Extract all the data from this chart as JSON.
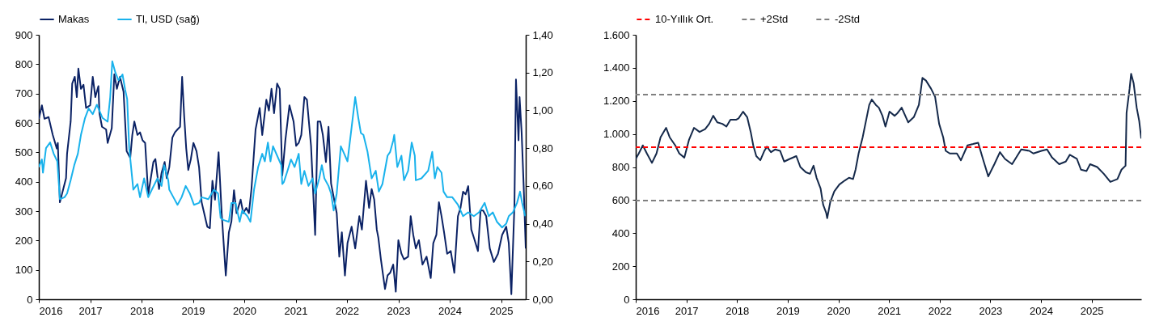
{
  "chart_data": [
    {
      "type": "line",
      "legend": "top",
      "xlim": [
        2016,
        2025.48
      ],
      "xticks": [
        2016,
        2017,
        2018,
        2019,
        2020,
        2021,
        2022,
        2023,
        2024,
        2025
      ],
      "ylim": [
        0,
        900
      ],
      "yticks": [
        0,
        100,
        200,
        300,
        400,
        500,
        600,
        700,
        800,
        900
      ],
      "y2lim": [
        0,
        1.4
      ],
      "y2ticks": [
        {
          "value": 0,
          "label": "0,00"
        },
        {
          "value": 0.2,
          "label": "0,20"
        },
        {
          "value": 0.4,
          "label": "0,40"
        },
        {
          "value": 0.6,
          "label": "0,60"
        },
        {
          "value": 0.8,
          "label": "0,80"
        },
        {
          "value": 1,
          "label": "1,00"
        },
        {
          "value": 1.2,
          "label": "1,20"
        },
        {
          "value": 1.4,
          "label": "1,40"
        }
      ],
      "series": [
        {
          "name": "Makas",
          "color": "#0b2265",
          "x": [
            2016.0,
            2016.06,
            2016.11,
            2016.19,
            2016.27,
            2016.35,
            2016.37,
            2016.41,
            2016.53,
            2016.55,
            2016.62,
            2016.65,
            2016.7,
            2016.74,
            2016.77,
            2016.82,
            2016.87,
            2016.92,
            2017.0,
            2017.05,
            2017.1,
            2017.16,
            2017.18,
            2017.23,
            2017.31,
            2017.34,
            2017.42,
            2017.47,
            2017.52,
            2017.58,
            2017.65,
            2017.71,
            2017.78,
            2017.82,
            2017.86,
            2017.92,
            2017.97,
            2018.02,
            2018.07,
            2018.13,
            2018.18,
            2018.23,
            2018.27,
            2018.34,
            2018.39,
            2018.45,
            2018.49,
            2018.54,
            2018.6,
            2018.65,
            2018.7,
            2018.75,
            2018.79,
            2018.83,
            2018.87,
            2018.91,
            2018.96,
            2019.01,
            2019.07,
            2019.12,
            2019.17,
            2019.28,
            2019.33,
            2019.38,
            2019.43,
            2019.5,
            2019.56,
            2019.64,
            2019.7,
            2019.75,
            2019.8,
            2019.85,
            2019.93,
            2019.98,
            2020.04,
            2020.09,
            2020.14,
            2020.22,
            2020.3,
            2020.35,
            2020.43,
            2020.48,
            2020.53,
            2020.58,
            2020.64,
            2020.69,
            2020.74,
            2020.8,
            2020.88,
            2020.96,
            2021.01,
            2021.06,
            2021.11,
            2021.17,
            2021.22,
            2021.3,
            2021.38,
            2021.43,
            2021.48,
            2021.53,
            2021.59,
            2021.64,
            2021.69,
            2021.74,
            2021.8,
            2021.85,
            2021.9,
            2021.96,
            2022.01,
            2022.09,
            2022.16,
            2022.24,
            2022.29,
            2022.37,
            2022.43,
            2022.48,
            2022.53,
            2022.58,
            2022.61,
            2022.66,
            2022.74,
            2022.79,
            2022.84,
            2022.9,
            2022.95,
            2023.0,
            2023.06,
            2023.11,
            2023.19,
            2023.24,
            2023.29,
            2023.34,
            2023.4,
            2023.47,
            2023.55,
            2023.63,
            2023.68,
            2023.74,
            2023.79,
            2023.84,
            2023.89,
            2023.95,
            2024.02,
            2024.09,
            2024.16,
            2024.21,
            2024.26,
            2024.31,
            2024.36,
            2024.42,
            2024.47,
            2024.55,
            2024.6,
            2024.65,
            2024.71,
            2024.78,
            2024.86,
            2024.94,
            2025.02,
            2025.1,
            2025.15,
            2025.2,
            2025.26,
            2025.29,
            2025.34,
            2025.36,
            2025.4,
            2025.44,
            2025.48
          ],
          "values": [
            614,
            660,
            614,
            620,
            560,
            513,
            532,
            330,
            412,
            495,
            605,
            734,
            757,
            688,
            785,
            716,
            730,
            651,
            660,
            757,
            688,
            725,
            633,
            587,
            578,
            532,
            582,
            766,
            716,
            757,
            706,
            504,
            481,
            559,
            605,
            559,
            568,
            541,
            532,
            357,
            412,
            467,
            477,
            375,
            430,
            467,
            412,
            449,
            550,
            568,
            578,
            587,
            757,
            624,
            513,
            440,
            477,
            532,
            504,
            449,
            330,
            247,
            242,
            403,
            339,
            500,
            293,
            81,
            228,
            265,
            371,
            293,
            339,
            293,
            311,
            293,
            375,
            578,
            651,
            559,
            679,
            642,
            716,
            633,
            734,
            716,
            421,
            541,
            660,
            605,
            522,
            532,
            559,
            688,
            679,
            522,
            219,
            605,
            605,
            559,
            467,
            587,
            394,
            348,
            293,
            145,
            228,
            81,
            191,
            247,
            173,
            283,
            237,
            403,
            311,
            375,
            339,
            237,
            210,
            136,
            35,
            81,
            90,
            118,
            26,
            201,
            155,
            136,
            145,
            283,
            219,
            173,
            201,
            118,
            145,
            72,
            191,
            219,
            330,
            283,
            228,
            155,
            164,
            90,
            283,
            311,
            366,
            357,
            385,
            237,
            210,
            164,
            302,
            302,
            283,
            173,
            127,
            155,
            219,
            247,
            191,
            17,
            320,
            748,
            541,
            688,
            568,
            385,
            173
          ]
        },
        {
          "name": "Tl, USD (sağ)",
          "color": "#19b2ec",
          "axis": "y2",
          "x": [
            2016.0,
            2016.06,
            2016.08,
            2016.14,
            2016.22,
            2016.29,
            2016.36,
            2016.41,
            2016.5,
            2016.55,
            2016.62,
            2016.69,
            2016.76,
            2016.82,
            2016.9,
            2016.97,
            2017.05,
            2017.13,
            2017.24,
            2017.34,
            2017.39,
            2017.43,
            2017.49,
            2017.55,
            2017.63,
            2017.68,
            2017.72,
            2017.76,
            2017.84,
            2017.92,
            2017.97,
            2018.05,
            2018.13,
            2018.2,
            2018.31,
            2018.39,
            2018.44,
            2018.52,
            2018.54,
            2018.62,
            2018.7,
            2018.78,
            2018.86,
            2018.94,
            2019.02,
            2019.12,
            2019.17,
            2019.3,
            2019.41,
            2019.49,
            2019.54,
            2019.59,
            2019.7,
            2019.75,
            2019.83,
            2019.91,
            2019.96,
            2020.06,
            2020.12,
            2020.19,
            2020.27,
            2020.35,
            2020.4,
            2020.46,
            2020.51,
            2020.56,
            2020.64,
            2020.72,
            2020.74,
            2020.77,
            2020.83,
            2020.91,
            2020.98,
            2021.06,
            2021.11,
            2021.17,
            2021.25,
            2021.33,
            2021.38,
            2021.46,
            2021.51,
            2021.56,
            2021.64,
            2021.69,
            2021.74,
            2021.8,
            2021.88,
            2021.93,
            2022.01,
            2022.09,
            2022.16,
            2022.22,
            2022.27,
            2022.32,
            2022.4,
            2022.48,
            2022.56,
            2022.62,
            2022.69,
            2022.79,
            2022.84,
            2022.9,
            2022.92,
            2022.98,
            2023.06,
            2023.11,
            2023.19,
            2023.26,
            2023.32,
            2023.34,
            2023.45,
            2023.58,
            2023.66,
            2023.71,
            2023.76,
            2023.84,
            2023.88,
            2023.95,
            2024.05,
            2024.16,
            2024.26,
            2024.36,
            2024.47,
            2024.57,
            2024.68,
            2024.76,
            2024.84,
            2024.92,
            2025.02,
            2025.1,
            2025.15,
            2025.23,
            2025.31,
            2025.37,
            2025.41,
            2025.47
          ],
          "values": [
            0.7,
            0.74,
            0.67,
            0.8,
            0.83,
            0.77,
            0.73,
            0.53,
            0.54,
            0.56,
            0.63,
            0.71,
            0.77,
            0.87,
            0.96,
            1.01,
            0.98,
            1.03,
            0.96,
            0.94,
            1.07,
            1.26,
            1.2,
            1.16,
            1.19,
            1.11,
            1.06,
            0.8,
            0.58,
            0.61,
            0.54,
            0.64,
            0.54,
            0.58,
            0.64,
            0.6,
            0.71,
            0.63,
            0.58,
            0.54,
            0.5,
            0.54,
            0.6,
            0.56,
            0.5,
            0.51,
            0.54,
            0.53,
            0.58,
            0.56,
            0.43,
            0.42,
            0.41,
            0.51,
            0.51,
            0.41,
            0.47,
            0.44,
            0.41,
            0.58,
            0.7,
            0.77,
            0.73,
            0.83,
            0.73,
            0.81,
            0.76,
            0.71,
            0.61,
            0.62,
            0.67,
            0.74,
            0.7,
            0.77,
            0.61,
            0.68,
            0.6,
            0.64,
            0.56,
            0.64,
            0.71,
            0.64,
            0.6,
            0.56,
            0.47,
            0.56,
            0.81,
            0.78,
            0.73,
            0.91,
            1.07,
            0.96,
            0.88,
            0.87,
            0.78,
            0.64,
            0.68,
            0.57,
            0.61,
            0.76,
            0.78,
            0.84,
            0.87,
            0.7,
            0.76,
            0.63,
            0.68,
            0.83,
            0.76,
            0.63,
            0.64,
            0.68,
            0.78,
            0.64,
            0.7,
            0.67,
            0.57,
            0.54,
            0.54,
            0.5,
            0.44,
            0.46,
            0.44,
            0.46,
            0.51,
            0.44,
            0.46,
            0.41,
            0.38,
            0.4,
            0.44,
            0.46,
            0.51,
            0.57,
            0.51,
            0.44
          ]
        }
      ]
    },
    {
      "type": "line",
      "legend": "top",
      "xlim": [
        2016,
        2025.98
      ],
      "xticks": [
        2016,
        2017,
        2018,
        2019,
        2020,
        2021,
        2022,
        2023,
        2024,
        2025
      ],
      "ylim": [
        0,
        1600
      ],
      "yticks": [
        0,
        200,
        400,
        600,
        800,
        {
          "value": 1000,
          "label": "1.000"
        },
        {
          "value": 1200,
          "label": "1.200"
        },
        {
          "value": 1400,
          "label": "1.400"
        },
        {
          "value": 1600,
          "label": "1.600"
        }
      ],
      "ref_lines": [
        {
          "axis": "y",
          "value": 920,
          "label": "10-Yıllık Ort.",
          "color": "#ff0000",
          "line_style": "dashed"
        },
        {
          "axis": "y",
          "value": 1238,
          "label": "+2Std",
          "color": "#808080",
          "line_style": "dashed"
        },
        {
          "axis": "y",
          "value": 597,
          "label": "-2Std",
          "color": "#808080",
          "line_style": "dashed"
        }
      ],
      "series": [
        {
          "color": "#15294a",
          "x": [
            2016.0,
            2016.06,
            2016.14,
            2016.22,
            2016.32,
            2016.41,
            2016.49,
            2016.6,
            2016.67,
            2016.78,
            2016.86,
            2016.96,
            2017.05,
            2017.15,
            2017.26,
            2017.37,
            2017.45,
            2017.53,
            2017.61,
            2017.71,
            2017.79,
            2017.87,
            2017.98,
            2018.03,
            2018.12,
            2018.2,
            2018.27,
            2018.32,
            2018.38,
            2018.46,
            2018.54,
            2018.59,
            2018.67,
            2018.75,
            2018.85,
            2018.93,
            2019.04,
            2019.17,
            2019.25,
            2019.36,
            2019.44,
            2019.51,
            2019.57,
            2019.65,
            2019.7,
            2019.76,
            2019.78,
            2019.84,
            2019.92,
            2020.02,
            2020.13,
            2020.21,
            2020.29,
            2020.34,
            2020.4,
            2020.48,
            2020.61,
            2020.66,
            2020.74,
            2020.8,
            2020.87,
            2020.93,
            2021.01,
            2021.11,
            2021.17,
            2021.25,
            2021.38,
            2021.49,
            2021.59,
            2021.66,
            2021.73,
            2021.83,
            2021.91,
            2021.99,
            2022.07,
            2022.12,
            2022.2,
            2022.34,
            2022.42,
            2022.55,
            2022.66,
            2022.76,
            2022.87,
            2022.96,
            2023.08,
            2023.19,
            2023.29,
            2023.43,
            2023.61,
            2023.77,
            2023.85,
            2024.01,
            2024.12,
            2024.22,
            2024.36,
            2024.49,
            2024.57,
            2024.71,
            2024.79,
            2024.9,
            2024.97,
            2025.11,
            2025.24,
            2025.37,
            2025.51,
            2025.59,
            2025.67,
            2025.69,
            2025.75,
            2025.78,
            2025.83,
            2025.89,
            2025.94,
            2025.98
          ],
          "values": [
            849,
            882,
            931,
            882,
            825,
            882,
            980,
            1037,
            980,
            931,
            882,
            857,
            963,
            1037,
            1012,
            1029,
            1061,
            1110,
            1070,
            1061,
            1045,
            1086,
            1086,
            1094,
            1135,
            1102,
            1012,
            931,
            866,
            841,
            898,
            923,
            890,
            906,
            898,
            833,
            849,
            866,
            800,
            768,
            759,
            808,
            735,
            670,
            572,
            523,
            490,
            588,
            653,
            694,
            719,
            735,
            727,
            784,
            882,
            980,
            1176,
            1208,
            1176,
            1159,
            1110,
            1045,
            1135,
            1110,
            1127,
            1159,
            1070,
            1102,
            1176,
            1339,
            1323,
            1274,
            1225,
            1061,
            980,
            898,
            882,
            882,
            841,
            931,
            939,
            947,
            833,
            743,
            817,
            890,
            849,
            817,
            906,
            898,
            882,
            898,
            906,
            857,
            817,
            833,
            874,
            849,
            784,
            776,
            817,
            800,
            759,
            710,
            727,
            784,
            808,
            1127,
            1274,
            1364,
            1306,
            1159,
            1078,
            972
          ]
        }
      ]
    }
  ]
}
